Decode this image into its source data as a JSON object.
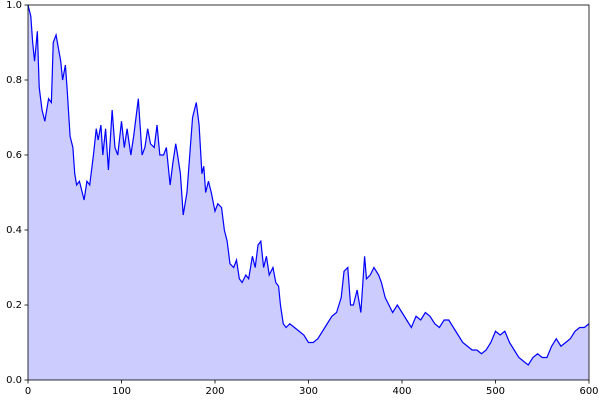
{
  "chart_data": {
    "type": "area",
    "x": [
      0,
      3,
      5,
      7,
      10,
      12,
      15,
      18,
      20,
      22,
      25,
      27,
      30,
      35,
      37,
      40,
      42,
      45,
      48,
      50,
      52,
      55,
      58,
      60,
      63,
      66,
      70,
      73,
      75,
      78,
      80,
      83,
      86,
      90,
      93,
      96,
      100,
      103,
      106,
      110,
      113,
      118,
      122,
      125,
      128,
      131,
      135,
      138,
      141,
      145,
      148,
      152,
      155,
      158,
      160,
      163,
      166,
      170,
      173,
      176,
      180,
      183,
      186,
      188,
      190,
      193,
      196,
      200,
      203,
      207,
      210,
      213,
      216,
      220,
      223,
      226,
      229,
      233,
      236,
      240,
      243,
      246,
      249,
      252,
      255,
      258,
      262,
      265,
      268,
      270,
      273,
      276,
      280,
      285,
      290,
      295,
      300,
      305,
      310,
      315,
      320,
      325,
      330,
      335,
      338,
      342,
      345,
      348,
      352,
      356,
      360,
      362,
      366,
      370,
      375,
      378,
      382,
      386,
      390,
      395,
      400,
      405,
      410,
      415,
      420,
      425,
      430,
      435,
      440,
      445,
      450,
      455,
      460,
      465,
      470,
      475,
      480,
      485,
      490,
      495,
      500,
      505,
      510,
      515,
      520,
      525,
      530,
      535,
      540,
      545,
      550,
      555,
      560,
      565,
      570,
      575,
      580,
      585,
      590,
      595,
      600
    ],
    "values": [
      1.0,
      0.97,
      0.9,
      0.85,
      0.93,
      0.78,
      0.72,
      0.69,
      0.72,
      0.75,
      0.74,
      0.9,
      0.92,
      0.85,
      0.8,
      0.84,
      0.77,
      0.65,
      0.62,
      0.55,
      0.52,
      0.53,
      0.5,
      0.48,
      0.53,
      0.52,
      0.6,
      0.67,
      0.64,
      0.68,
      0.6,
      0.67,
      0.56,
      0.72,
      0.62,
      0.6,
      0.69,
      0.62,
      0.67,
      0.6,
      0.65,
      0.75,
      0.6,
      0.62,
      0.67,
      0.63,
      0.62,
      0.68,
      0.6,
      0.6,
      0.62,
      0.52,
      0.58,
      0.63,
      0.6,
      0.55,
      0.44,
      0.5,
      0.6,
      0.7,
      0.74,
      0.68,
      0.55,
      0.57,
      0.5,
      0.53,
      0.5,
      0.45,
      0.47,
      0.46,
      0.4,
      0.37,
      0.31,
      0.3,
      0.32,
      0.27,
      0.26,
      0.28,
      0.27,
      0.33,
      0.3,
      0.36,
      0.37,
      0.3,
      0.33,
      0.28,
      0.3,
      0.26,
      0.25,
      0.2,
      0.15,
      0.14,
      0.15,
      0.14,
      0.13,
      0.12,
      0.1,
      0.1,
      0.11,
      0.13,
      0.15,
      0.17,
      0.18,
      0.22,
      0.29,
      0.3,
      0.2,
      0.2,
      0.24,
      0.18,
      0.33,
      0.27,
      0.28,
      0.3,
      0.28,
      0.26,
      0.22,
      0.2,
      0.18,
      0.2,
      0.18,
      0.16,
      0.14,
      0.17,
      0.16,
      0.18,
      0.17,
      0.15,
      0.14,
      0.16,
      0.16,
      0.14,
      0.12,
      0.1,
      0.09,
      0.08,
      0.08,
      0.07,
      0.08,
      0.1,
      0.13,
      0.12,
      0.13,
      0.1,
      0.08,
      0.06,
      0.05,
      0.04,
      0.06,
      0.07,
      0.06,
      0.06,
      0.09,
      0.11,
      0.09,
      0.1,
      0.11,
      0.13,
      0.14,
      0.14,
      0.15
    ],
    "color": "#0000ff",
    "fill_color": "#ccccff",
    "xlim": [
      0,
      600
    ],
    "xticks": [
      0,
      100,
      200,
      300,
      400,
      500,
      600
    ],
    "ylim": [
      0,
      1
    ],
    "yticks": [
      {
        "value": 0,
        "label": "0.0"
      },
      0.2,
      0.4,
      0.6,
      0.8,
      {
        "value": 1,
        "label": "1.0"
      }
    ]
  }
}
